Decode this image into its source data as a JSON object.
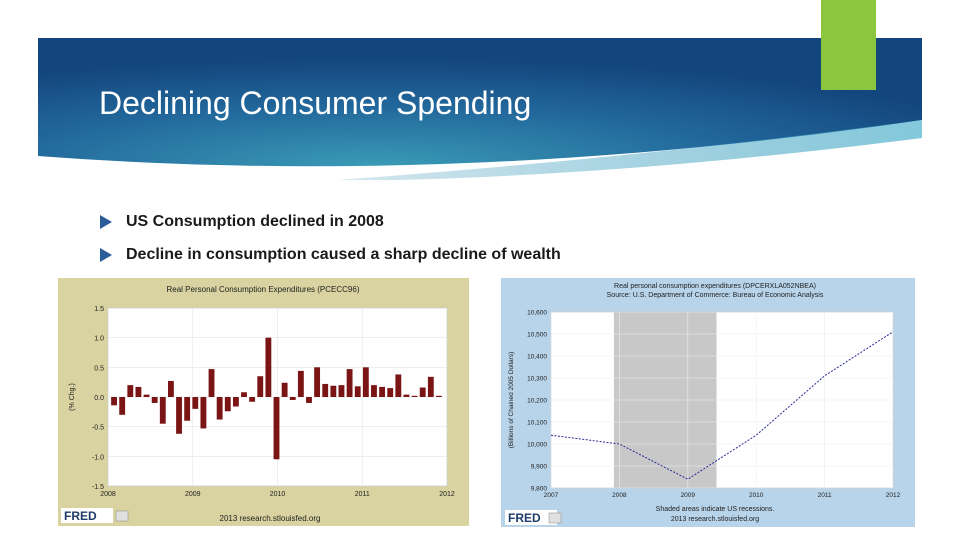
{
  "slide": {
    "title": "Declining Consumer Spending",
    "colors": {
      "banner_dark": "#1a4f86",
      "banner_mid": "#2b7fa6",
      "accent_green": "#8cc63f"
    },
    "bullets": [
      {
        "text": "US Consumption declined in 2008"
      },
      {
        "text": "Decline in consumption caused a sharp decline of wealth"
      }
    ]
  },
  "chart_data": [
    {
      "type": "bar",
      "title": "Real Personal Consumption Expenditures (PCECC96)",
      "ylabel": "(% Chg.)",
      "ylim": [
        -1.5,
        1.5
      ],
      "yticks": [
        "1.5",
        "1.0",
        "0.5",
        "0.0",
        "-0.5",
        "-1.0",
        "-1.5"
      ],
      "xticks": [
        "2008",
        "2009",
        "2010",
        "2011",
        "2012"
      ],
      "xlim": [
        2008,
        2012
      ],
      "bar_color": "#7b1414",
      "background": "#d8d3a0",
      "source": "2013 research.stlouisfed.org",
      "logo": "FRED",
      "values": [
        -0.14,
        -0.3,
        0.2,
        0.17,
        0.04,
        -0.1,
        -0.45,
        0.27,
        -0.62,
        -0.4,
        -0.2,
        -0.53,
        0.47,
        -0.38,
        -0.24,
        -0.16,
        0.08,
        -0.08,
        0.35,
        1.0,
        -1.05,
        0.24,
        -0.05,
        0.44,
        -0.1,
        0.5,
        0.22,
        0.19,
        0.2,
        0.47,
        0.18,
        0.5,
        0.2,
        0.17,
        0.15,
        0.38,
        0.04,
        0.02,
        0.16,
        0.34,
        0.02
      ]
    },
    {
      "type": "line",
      "title": "Real personal consumption expenditures (DPCERXLA052NBEA)",
      "subtitle": "Source: U.S. Department of Commerce: Bureau of Economic Analysis",
      "ylabel": "(Billions of Chained 2005 Dollars)",
      "ylim": [
        9800,
        10600
      ],
      "yticks": [
        "10,600",
        "10,500",
        "10,400",
        "10,300",
        "10,200",
        "10,100",
        "10,000",
        "9,900",
        "9,800"
      ],
      "xticks": [
        "2007",
        "2008",
        "2009",
        "2010",
        "2011",
        "2012"
      ],
      "xlim": [
        2007,
        2012
      ],
      "x": [
        2007,
        2008,
        2009,
        2010,
        2011,
        2012
      ],
      "y": [
        10040,
        10000,
        9840,
        10040,
        10310,
        10510
      ],
      "recession": [
        2007.92,
        2009.42
      ],
      "line_color": "#2a2a9a",
      "background": "#b8d4ea",
      "note": "Shaded areas indicate US recessions.",
      "source": "2013 research.stlouisfed.org",
      "logo": "FRED"
    }
  ]
}
